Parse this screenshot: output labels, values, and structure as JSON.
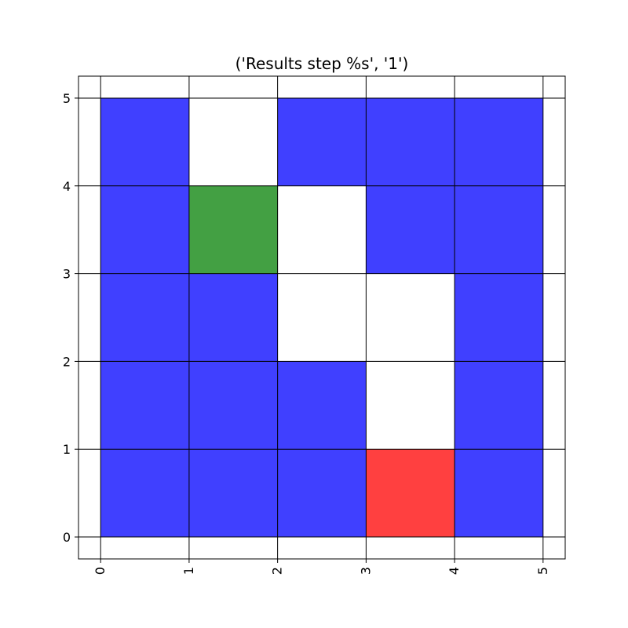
{
  "chart_data": {
    "type": "heatmap",
    "title": "('Results step %s', '1')",
    "xlabel": "",
    "ylabel": "",
    "xlim": [
      -0.25,
      5.25
    ],
    "ylim": [
      -0.25,
      5.25
    ],
    "x_ticks": [
      0,
      1,
      2,
      3,
      4,
      5
    ],
    "y_ticks": [
      0,
      1,
      2,
      3,
      4,
      5
    ],
    "x_tick_rotation": "vertical",
    "grid": true,
    "cell_colors": {
      "blue": "#4040ff",
      "green": "#43a043",
      "red": "#ff4040",
      "empty": "#ffffff"
    },
    "cells": [
      {
        "x": 0,
        "y": 0,
        "state": "blue"
      },
      {
        "x": 1,
        "y": 0,
        "state": "blue"
      },
      {
        "x": 2,
        "y": 0,
        "state": "blue"
      },
      {
        "x": 3,
        "y": 0,
        "state": "red"
      },
      {
        "x": 4,
        "y": 0,
        "state": "blue"
      },
      {
        "x": 0,
        "y": 1,
        "state": "blue"
      },
      {
        "x": 1,
        "y": 1,
        "state": "blue"
      },
      {
        "x": 2,
        "y": 1,
        "state": "blue"
      },
      {
        "x": 3,
        "y": 1,
        "state": "empty"
      },
      {
        "x": 4,
        "y": 1,
        "state": "blue"
      },
      {
        "x": 0,
        "y": 2,
        "state": "blue"
      },
      {
        "x": 1,
        "y": 2,
        "state": "blue"
      },
      {
        "x": 2,
        "y": 2,
        "state": "empty"
      },
      {
        "x": 3,
        "y": 2,
        "state": "empty"
      },
      {
        "x": 4,
        "y": 2,
        "state": "blue"
      },
      {
        "x": 0,
        "y": 3,
        "state": "blue"
      },
      {
        "x": 1,
        "y": 3,
        "state": "green"
      },
      {
        "x": 2,
        "y": 3,
        "state": "empty"
      },
      {
        "x": 3,
        "y": 3,
        "state": "blue"
      },
      {
        "x": 4,
        "y": 3,
        "state": "blue"
      },
      {
        "x": 0,
        "y": 4,
        "state": "blue"
      },
      {
        "x": 1,
        "y": 4,
        "state": "empty"
      },
      {
        "x": 2,
        "y": 4,
        "state": "blue"
      },
      {
        "x": 3,
        "y": 4,
        "state": "blue"
      },
      {
        "x": 4,
        "y": 4,
        "state": "blue"
      }
    ]
  }
}
